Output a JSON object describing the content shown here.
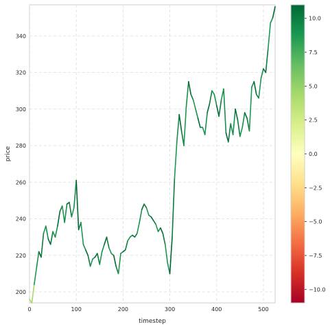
{
  "chart_data": {
    "type": "line",
    "title": "",
    "xlabel": "timestep",
    "ylabel": "price",
    "xlim": [
      0,
      525
    ],
    "ylim": [
      194,
      357
    ],
    "x_ticks": [
      0,
      100,
      200,
      300,
      400,
      500
    ],
    "y_ticks": [
      200,
      220,
      240,
      260,
      280,
      300,
      320,
      340
    ],
    "grid": true,
    "grid_style": "dashed",
    "line_color_note": "segments colored by value on RdYlGn colormap",
    "series": [
      {
        "x": [
          0,
          5,
          10,
          15,
          20,
          25,
          30,
          35,
          40,
          45,
          50,
          55,
          60,
          65,
          70,
          75,
          80,
          85,
          90,
          95,
          100,
          105,
          110,
          115,
          120,
          125,
          130,
          135,
          140,
          145,
          150,
          155,
          160,
          165,
          170,
          175,
          180,
          185,
          190,
          195,
          200,
          205,
          210,
          215,
          220,
          225,
          230,
          235,
          240,
          245,
          250,
          255,
          260,
          265,
          270,
          275,
          280,
          285,
          290,
          295,
          300,
          305,
          310,
          315,
          320,
          325,
          330,
          335,
          340,
          345,
          350,
          355,
          360,
          365,
          370,
          375,
          380,
          385,
          390,
          395,
          400,
          405,
          410,
          415,
          420,
          425,
          430,
          435,
          440,
          445,
          450,
          455,
          460,
          465,
          470,
          475,
          480,
          485,
          490,
          495,
          500,
          505,
          510,
          515,
          520,
          525
        ],
        "values": [
          196,
          194,
          204,
          213,
          222,
          219,
          232,
          236,
          229,
          226,
          233,
          230,
          236,
          244,
          247,
          238,
          248,
          249,
          241,
          246,
          261,
          234,
          238,
          226,
          223,
          220,
          214,
          218,
          219,
          221,
          215,
          222,
          226,
          230,
          224,
          221,
          220,
          214,
          210,
          221,
          222,
          223,
          228,
          230,
          231,
          230,
          232,
          238,
          245,
          248,
          246,
          242,
          241,
          239,
          237,
          233,
          235,
          232,
          226,
          216,
          210,
          230,
          262,
          282,
          297,
          288,
          280,
          301,
          315,
          308,
          305,
          300,
          295,
          290,
          290,
          286,
          298,
          303,
          310,
          308,
          302,
          296,
          305,
          311,
          287,
          282,
          292,
          286,
          300,
          294,
          285,
          290,
          298,
          295,
          288,
          312,
          315,
          308,
          306,
          317,
          322,
          320,
          333,
          347,
          350,
          356
        ]
      }
    ],
    "colorbar": {
      "colormap": "RdYlGn",
      "vmin": -11,
      "vmax": 11,
      "ticks": [
        10.0,
        7.5,
        5.0,
        2.5,
        0.0,
        -2.5,
        -5.0,
        -7.5,
        -10.0
      ],
      "tick_labels": [
        "10.0",
        "7.5",
        "5.0",
        "2.5",
        "0.0",
        "−2.5",
        "−5.0",
        "−7.5",
        "−10.0"
      ]
    }
  }
}
